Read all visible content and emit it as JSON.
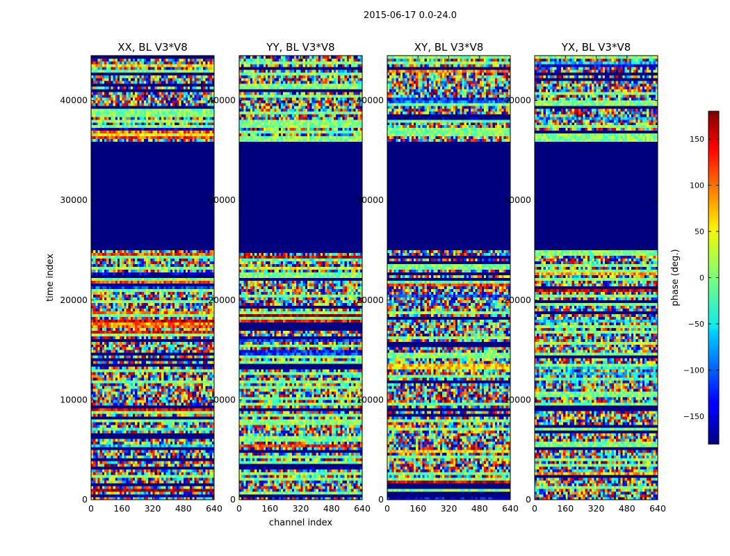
{
  "figure_title": "2015-06-17 0.0-24.0",
  "chart_data": [
    {
      "type": "heatmap",
      "title": "XX, BL V3*V8",
      "xlabel": "",
      "ylabel": "time index",
      "xlim": [
        0,
        640
      ],
      "ylim": [
        0,
        44500
      ],
      "xticks": [
        0,
        160,
        320,
        480,
        640
      ],
      "yticks": [
        0,
        10000,
        20000,
        30000,
        40000
      ],
      "flagged_rows": [
        [
          25000,
          36000
        ]
      ],
      "cmap": "jet",
      "value_range": [
        -180,
        180
      ]
    },
    {
      "type": "heatmap",
      "title": "YY, BL V3*V8",
      "xlabel": "channel index",
      "ylabel": "",
      "xlim": [
        0,
        640
      ],
      "ylim": [
        0,
        44500
      ],
      "xticks": [
        0,
        160,
        320,
        480,
        640
      ],
      "yticks": [
        0,
        10000,
        20000,
        30000,
        40000
      ],
      "flagged_rows": [
        [
          25000,
          36000
        ]
      ],
      "cmap": "jet",
      "value_range": [
        -180,
        180
      ]
    },
    {
      "type": "heatmap",
      "title": "XY, BL V3*V8",
      "xlabel": "",
      "ylabel": "",
      "xlim": [
        0,
        640
      ],
      "ylim": [
        0,
        44500
      ],
      "xticks": [
        0,
        160,
        320,
        480,
        640
      ],
      "yticks": [
        0,
        10000,
        20000,
        30000,
        40000
      ],
      "flagged_rows": [
        [
          25000,
          36000
        ]
      ],
      "cmap": "jet",
      "value_range": [
        -180,
        180
      ]
    },
    {
      "type": "heatmap",
      "title": "YX, BL V3*V8",
      "xlabel": "",
      "ylabel": "",
      "xlim": [
        0,
        640
      ],
      "ylim": [
        0,
        44500
      ],
      "xticks": [
        0,
        160,
        320,
        480,
        640
      ],
      "yticks": [
        0,
        10000,
        20000,
        30000,
        40000
      ],
      "flagged_rows": [
        [
          25000,
          36000
        ]
      ],
      "cmap": "jet",
      "value_range": [
        -180,
        180
      ]
    }
  ],
  "colorbar": {
    "label": "phase (deg.)",
    "range": [
      -180,
      180
    ],
    "ticks": [
      -150,
      -100,
      -50,
      0,
      50,
      100,
      150
    ],
    "tick_labels": [
      "−150",
      "−100",
      "−50",
      "0",
      "50",
      "100",
      "150"
    ]
  }
}
